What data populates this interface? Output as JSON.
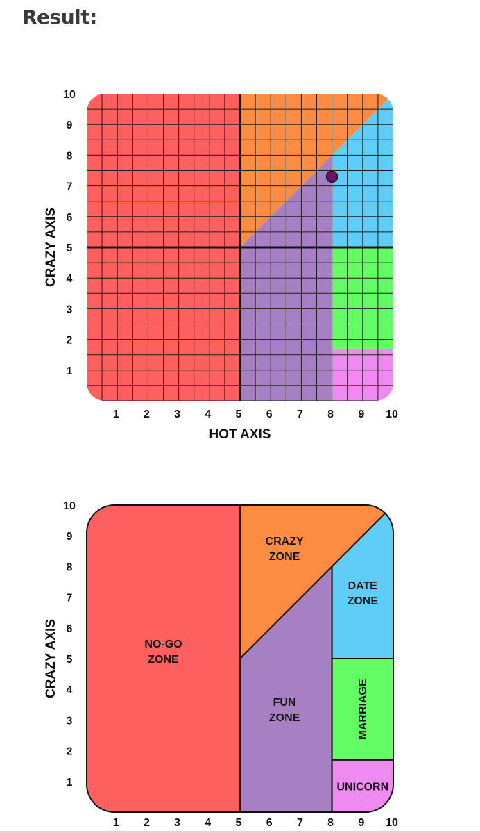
{
  "heading": "Result:",
  "colors": {
    "no_go": "#fe5f5f",
    "crazy": "#fb8c41",
    "fun": "#a780c4",
    "date": "#5fcdf6",
    "marriage": "#64fc64",
    "unicorn": "#ee8af0",
    "grid_line": "#1f1f1f",
    "marker": "#6a1463"
  },
  "chart_data": [
    {
      "type": "scatter",
      "xlabel": "HOT AXIS",
      "ylabel": "CRAZY AXIS",
      "xlim": [
        0,
        10
      ],
      "ylim": [
        0,
        10
      ],
      "x_ticks": [
        "1",
        "2",
        "3",
        "4",
        "5",
        "6",
        "7",
        "8",
        "9",
        "10"
      ],
      "y_ticks": [
        "1",
        "2",
        "3",
        "4",
        "5",
        "6",
        "7",
        "8",
        "9",
        "10"
      ],
      "grid": true,
      "grid_step": 0.5,
      "zones": [
        {
          "id": "no_go",
          "polygon": [
            [
              0,
              0
            ],
            [
              5,
              0
            ],
            [
              5,
              10
            ],
            [
              0,
              10
            ]
          ]
        },
        {
          "id": "crazy",
          "polygon": [
            [
              5,
              5
            ],
            [
              5,
              10
            ],
            [
              10,
              10
            ]
          ]
        },
        {
          "id": "fun",
          "polygon": [
            [
              5,
              0
            ],
            [
              8,
              0
            ],
            [
              8,
              8
            ],
            [
              5,
              5
            ]
          ]
        },
        {
          "id": "date",
          "polygon": [
            [
              8,
              5
            ],
            [
              10,
              5
            ],
            [
              10,
              10
            ],
            [
              8,
              8
            ]
          ]
        },
        {
          "id": "marriage",
          "polygon": [
            [
              8,
              1.7
            ],
            [
              10,
              1.7
            ],
            [
              10,
              5
            ],
            [
              8,
              5
            ]
          ]
        },
        {
          "id": "unicorn",
          "polygon": [
            [
              8,
              0
            ],
            [
              10,
              0
            ],
            [
              10,
              1.7
            ],
            [
              8,
              1.7
            ]
          ]
        }
      ],
      "points": [
        {
          "x": 8.0,
          "y": 7.3
        }
      ]
    },
    {
      "type": "area",
      "xlabel": "",
      "ylabel": "CRAZY AXIS",
      "xlim": [
        0,
        10
      ],
      "ylim": [
        0,
        10
      ],
      "x_ticks": [
        "1",
        "2",
        "3",
        "4",
        "5",
        "6",
        "7",
        "8",
        "9",
        "10"
      ],
      "y_ticks": [
        "1",
        "2",
        "3",
        "4",
        "5",
        "6",
        "7",
        "8",
        "9",
        "10"
      ],
      "grid": false,
      "zones": [
        {
          "id": "no_go",
          "label_lines": [
            "NO-GO",
            "ZONE"
          ],
          "polygon": [
            [
              0,
              0
            ],
            [
              5,
              0
            ],
            [
              5,
              10
            ],
            [
              0,
              10
            ]
          ],
          "label_at": [
            2.5,
            5.25
          ]
        },
        {
          "id": "crazy",
          "label_lines": [
            "CRAZY",
            "ZONE"
          ],
          "polygon": [
            [
              5,
              5
            ],
            [
              5,
              10
            ],
            [
              10,
              10
            ]
          ],
          "label_at": [
            6.45,
            8.6
          ]
        },
        {
          "id": "fun",
          "label_lines": [
            "FUN",
            "ZONE"
          ],
          "polygon": [
            [
              5,
              0
            ],
            [
              8,
              0
            ],
            [
              8,
              8
            ],
            [
              5,
              5
            ]
          ],
          "label_at": [
            6.45,
            3.35
          ]
        },
        {
          "id": "date",
          "label_lines": [
            "DATE",
            "ZONE"
          ],
          "polygon": [
            [
              8,
              5
            ],
            [
              10,
              5
            ],
            [
              10,
              10
            ],
            [
              8,
              8
            ]
          ],
          "label_at": [
            9.0,
            7.15
          ]
        },
        {
          "id": "marriage",
          "label_lines": [
            "MARRIAGE"
          ],
          "polygon": [
            [
              8,
              1.7
            ],
            [
              10,
              1.7
            ],
            [
              10,
              5
            ],
            [
              8,
              5
            ]
          ],
          "label_at": [
            9.0,
            3.35
          ],
          "vertical": true
        },
        {
          "id": "unicorn",
          "label_lines": [
            "UNICORN"
          ],
          "polygon": [
            [
              8,
              0
            ],
            [
              10,
              0
            ],
            [
              10,
              1.7
            ],
            [
              8,
              1.7
            ]
          ],
          "label_at": [
            9.0,
            0.85
          ]
        }
      ]
    }
  ]
}
